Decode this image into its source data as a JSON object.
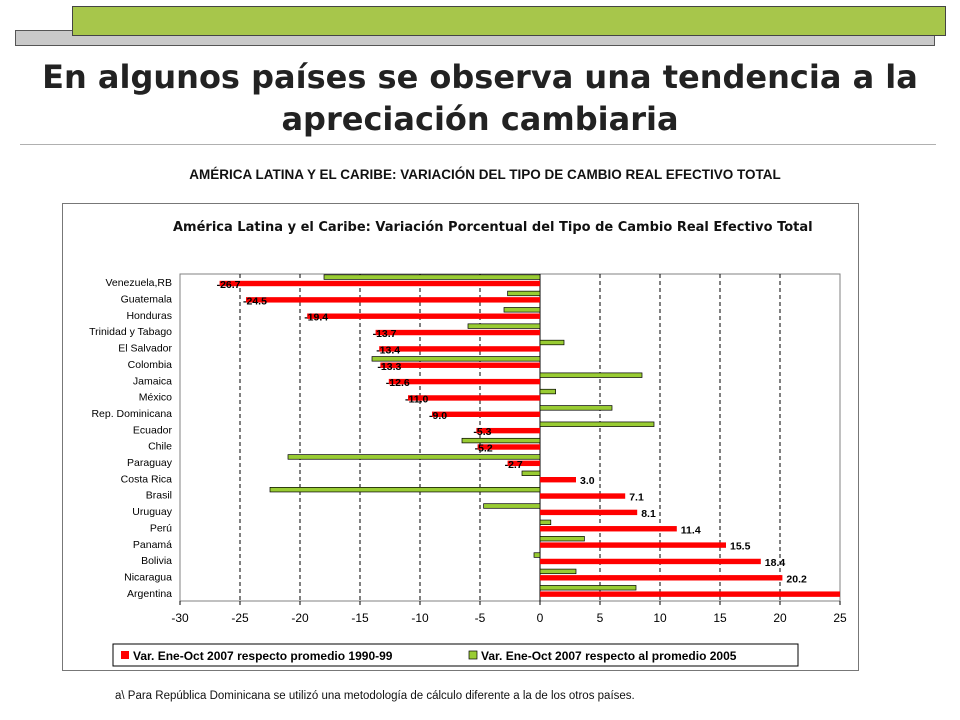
{
  "slide": {
    "title": "En algunos países se observa una tendencia a la apreciación cambiaria",
    "subtitle": "AMÉRICA LATINA Y EL CARIBE: VARIACIÓN DEL TIPO DE CAMBIO REAL EFECTIVO TOTAL",
    "footnote": "a\\ Para República Dominicana se utilizó una metodología de cálculo diferente a la de los otros países.",
    "colors": {
      "header_green": "#a7c64b",
      "header_grey": "#c9c9c9"
    }
  },
  "chart_data": {
    "type": "bar",
    "orientation": "horizontal",
    "title": "América Latina y el Caribe: Variación Porcentual del Tipo de Cambio Real Efectivo Total",
    "categories": [
      "Venezuela,RB",
      "Guatemala",
      "Honduras",
      "Trinidad y Tabago",
      "El Salvador",
      "Colombia",
      "Jamaica",
      "México",
      "Rep. Dominicana",
      "Ecuador",
      "Chile",
      "Paraguay",
      "Costa Rica",
      "Brasil",
      "Uruguay",
      "Perú",
      "Panamá",
      "Bolivia",
      "Nicaragua",
      "Argentina"
    ],
    "series": [
      {
        "name": "Var. Ene-Oct 2007 respecto promedio 1990-99",
        "color": "#ff0000",
        "values": [
          -26.7,
          -24.5,
          -19.4,
          -13.7,
          -13.4,
          -13.3,
          -12.6,
          -11.0,
          -9.0,
          -5.3,
          -5.2,
          -2.7,
          3.0,
          7.1,
          8.1,
          11.4,
          15.5,
          18.4,
          20.2,
          25.0
        ],
        "labels": [
          "-26.7",
          "-24.5",
          "-19.4",
          "-13.7",
          "-13.4",
          "-13.3",
          "-12.6",
          "-11.0",
          "-9.0",
          "-5.3",
          "-5.2",
          "-2.7",
          "3.0",
          "7.1",
          "8.1",
          "11.4",
          "15.5",
          "18.4",
          "20.2",
          ""
        ]
      },
      {
        "name": "Var. Ene-Oct 2007 respecto al promedio 2005",
        "color": "#99cc33",
        "values": [
          -18,
          -2.7,
          -3,
          -6,
          2,
          -14,
          8.5,
          1.3,
          6,
          9.5,
          -6.5,
          -21,
          -1.5,
          -22.5,
          -4.7,
          0.9,
          3.7,
          -0.5,
          3,
          8
        ]
      }
    ],
    "xlim": [
      -30,
      25
    ],
    "xticks": [
      -30,
      -25,
      -20,
      -15,
      -10,
      -5,
      0,
      5,
      10,
      15,
      20,
      25
    ],
    "grid": "vertical dashed",
    "legend_position": "bottom"
  }
}
